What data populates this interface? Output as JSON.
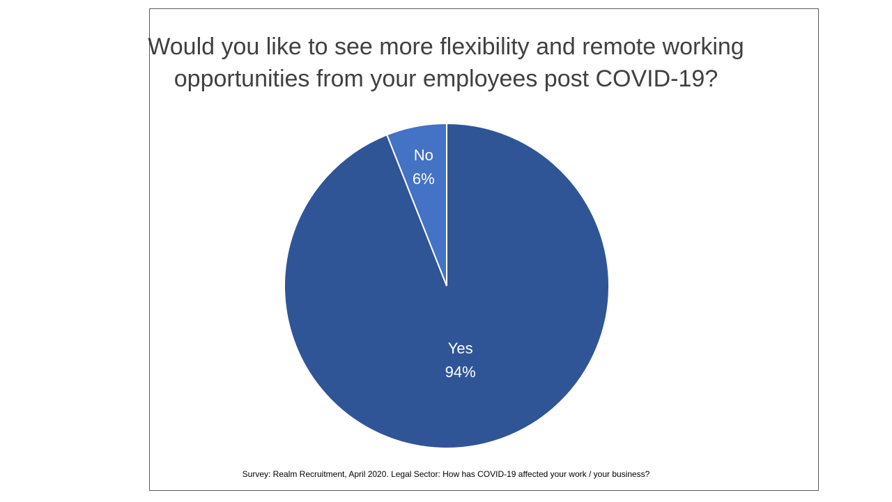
{
  "chart_data": {
    "type": "pie",
    "title": [
      "Would you like to see more flexibility and remote working",
      "opportunities from your employees post COVID-19?"
    ],
    "categories": [
      "No",
      "Yes"
    ],
    "values": [
      6,
      94
    ],
    "data_labels": [
      {
        "category": "No",
        "value": "6%"
      },
      {
        "category": "Yes",
        "value": "94%"
      }
    ],
    "colors": [
      "#4472C4",
      "#2F5597"
    ],
    "source": "Survey: Realm Recruitment, April 2020. Legal Sector: How has COVID-19 affected your work / your business?"
  }
}
